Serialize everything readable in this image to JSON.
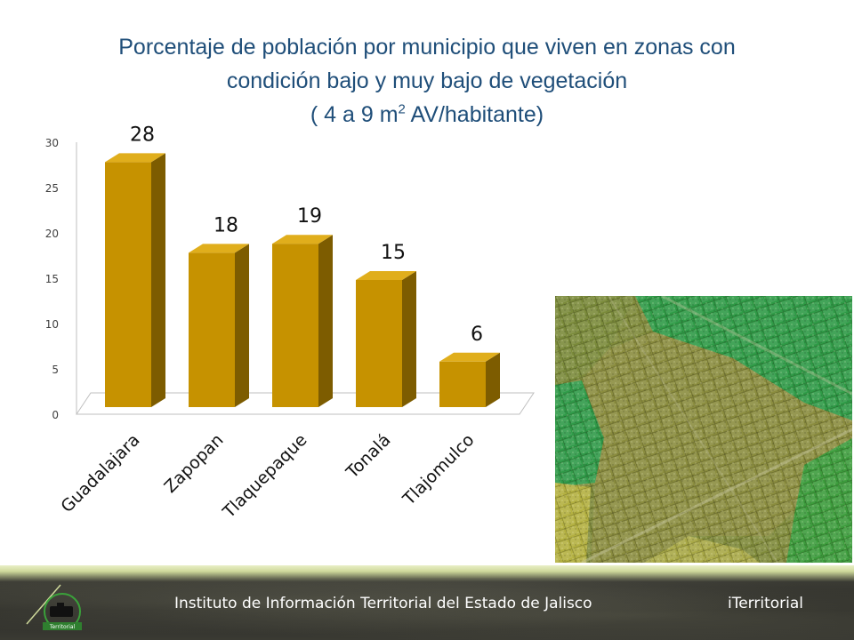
{
  "title": {
    "line1": "Porcentaje de población por municipio que viven en zonas con",
    "line2": "condición bajo y muy bajo de vegetación",
    "line3_pre": "( 4 a 9 m",
    "line3_sup": "2",
    "line3_post": " AV/habitante)"
  },
  "chart_data": {
    "type": "bar",
    "categories": [
      "Guadalajara",
      "Zapopan",
      "Tlaquepaque",
      "Tonalá",
      "Tlajomulco"
    ],
    "values": [
      28,
      18,
      19,
      15,
      6
    ],
    "data_labels": [
      "28",
      "18",
      "19",
      "15",
      "6"
    ],
    "ylim": [
      0,
      30
    ],
    "yticks": [
      "0",
      "5",
      "10",
      "15",
      "20",
      "25",
      "30"
    ],
    "xlabel": "",
    "ylabel": "",
    "grid": false,
    "bar_color": "#c69200",
    "bar_side_color": "#7d5c00",
    "bar_top_color": "#e0ae1c"
  },
  "footer": {
    "institute": "Instituto de Información Territorial del Estado de Jalisco",
    "brand": "iTerritorial",
    "logo_text": "Territorial"
  }
}
